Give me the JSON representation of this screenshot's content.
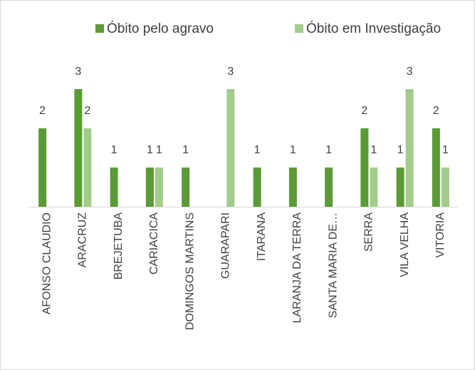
{
  "chart_data": {
    "type": "bar",
    "categories": [
      "AFONSO CLAUDIO",
      "ARACRUZ",
      "BREJETUBA",
      "CARIACICA",
      "DOMINGOS MARTINS",
      "GUARAPARI",
      "ITARANA",
      "LARANJA DA TERRA",
      "SANTA MARIA DE…",
      "SERRA",
      "VILA VELHA",
      "VITORIA"
    ],
    "series": [
      {
        "name": "Óbito pelo agravo",
        "color": "#5b9b36",
        "values": [
          2,
          3,
          1,
          1,
          1,
          null,
          1,
          1,
          1,
          2,
          1,
          2
        ]
      },
      {
        "name": "Óbito em Investigação",
        "color": "#a3cc8c",
        "values": [
          null,
          2,
          null,
          1,
          null,
          3,
          null,
          null,
          null,
          1,
          3,
          1
        ]
      }
    ],
    "ylim": [
      0,
      4
    ],
    "legend": "top"
  }
}
